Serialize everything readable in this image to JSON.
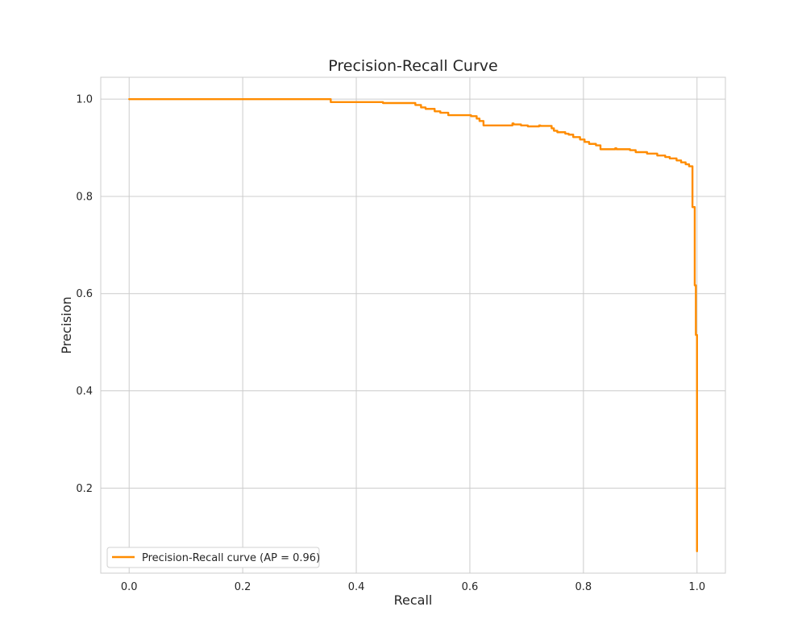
{
  "chart_data": {
    "type": "line",
    "title": "Precision-Recall Curve",
    "xlabel": "Recall",
    "ylabel": "Precision",
    "xlim": [
      -0.05,
      1.05
    ],
    "ylim": [
      0.025,
      1.045
    ],
    "grid": true,
    "x_ticks": [
      0.0,
      0.2,
      0.4,
      0.6,
      0.8,
      1.0
    ],
    "y_ticks": [
      0.2,
      0.4,
      0.6,
      0.8,
      1.0
    ],
    "x_tick_labels": [
      "0.0",
      "0.2",
      "0.4",
      "0.6",
      "0.8",
      "1.0"
    ],
    "y_tick_labels": [
      "0.2",
      "0.4",
      "0.6",
      "0.8",
      "1.0"
    ],
    "legend": {
      "placement": "lower-left"
    },
    "series": [
      {
        "name": "Precision-Recall curve (AP = 0.96)",
        "color": "#ff8c00",
        "step": "post",
        "x": [
          0.0,
          0.353,
          0.355,
          0.445,
          0.447,
          0.502,
          0.504,
          0.512,
          0.514,
          0.52,
          0.522,
          0.536,
          0.538,
          0.546,
          0.548,
          0.56,
          0.562,
          0.6,
          0.602,
          0.61,
          0.612,
          0.615,
          0.617,
          0.622,
          0.624,
          0.675,
          0.677,
          0.688,
          0.69,
          0.7,
          0.702,
          0.722,
          0.724,
          0.742,
          0.744,
          0.746,
          0.748,
          0.752,
          0.754,
          0.766,
          0.768,
          0.772,
          0.774,
          0.78,
          0.782,
          0.792,
          0.794,
          0.8,
          0.802,
          0.808,
          0.81,
          0.82,
          0.822,
          0.828,
          0.83,
          0.856,
          0.858,
          0.88,
          0.882,
          0.89,
          0.892,
          0.91,
          0.912,
          0.928,
          0.93,
          0.942,
          0.944,
          0.95,
          0.952,
          0.962,
          0.964,
          0.97,
          0.972,
          0.978,
          0.98,
          0.984,
          0.986,
          0.99,
          0.992,
          0.994,
          0.996,
          0.998,
          1.0,
          1.0
        ],
        "y": [
          1.0,
          1.0,
          0.994,
          0.994,
          0.992,
          0.992,
          0.988,
          0.988,
          0.983,
          0.983,
          0.98,
          0.98,
          0.975,
          0.975,
          0.972,
          0.972,
          0.967,
          0.967,
          0.965,
          0.965,
          0.96,
          0.96,
          0.955,
          0.955,
          0.946,
          0.95,
          0.948,
          0.948,
          0.946,
          0.946,
          0.944,
          0.946,
          0.945,
          0.945,
          0.94,
          0.94,
          0.935,
          0.935,
          0.932,
          0.932,
          0.929,
          0.929,
          0.927,
          0.927,
          0.922,
          0.922,
          0.917,
          0.917,
          0.912,
          0.912,
          0.908,
          0.908,
          0.905,
          0.905,
          0.897,
          0.899,
          0.897,
          0.897,
          0.895,
          0.895,
          0.891,
          0.891,
          0.888,
          0.888,
          0.884,
          0.884,
          0.881,
          0.881,
          0.878,
          0.878,
          0.874,
          0.874,
          0.87,
          0.87,
          0.866,
          0.866,
          0.862,
          0.862,
          0.778,
          0.778,
          0.617,
          0.515,
          0.515,
          0.07
        ]
      }
    ]
  }
}
